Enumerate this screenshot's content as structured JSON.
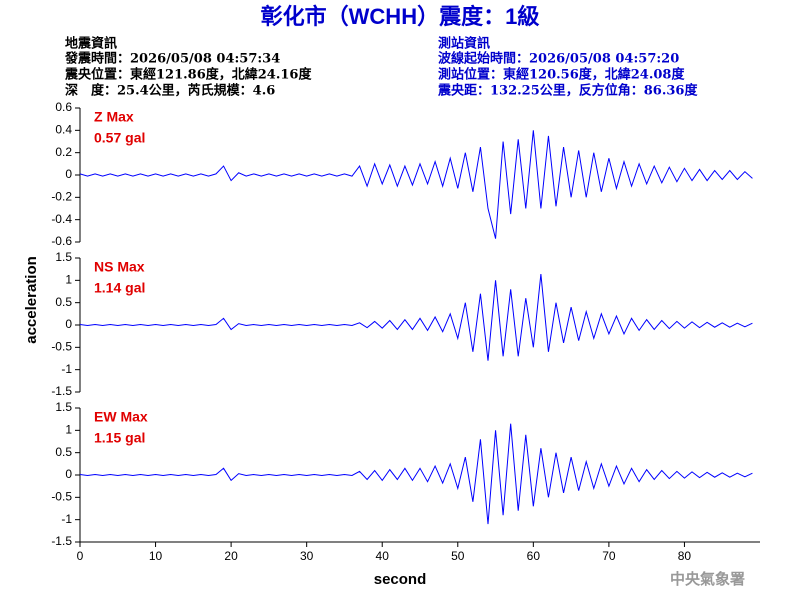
{
  "header": {
    "title": "彰化市（WCHH）震度：1級",
    "left": [
      "地震資訊",
      "發震時間：2026/05/08 04:57:34",
      "震央位置：東經121.86度，北緯24.16度",
      "深　度：25.4公里，芮氏規模：4.6"
    ],
    "right": [
      "測站資訊",
      "波線起始時間：2026/05/08 04:57:20",
      "測站位置：東經120.56度，北緯24.08度",
      "震央距：132.25公里，反方位角：86.36度"
    ],
    "footer": "中央氣象署"
  },
  "chart_data": [
    {
      "type": "line",
      "title": "Z Max",
      "annotation": "0.57 gal",
      "color": "#0000ff",
      "xlim": [
        0,
        90
      ],
      "ylim": [
        -0.6,
        0.6
      ],
      "yticks": [
        0.6,
        0.4,
        0.2,
        0,
        -0.2,
        -0.4,
        -0.6
      ],
      "x": [
        0,
        1,
        2,
        3,
        4,
        5,
        6,
        7,
        8,
        9,
        10,
        11,
        12,
        13,
        14,
        15,
        16,
        17,
        18,
        19,
        20,
        21,
        22,
        23,
        24,
        25,
        26,
        27,
        28,
        29,
        30,
        31,
        32,
        33,
        34,
        35,
        36,
        37,
        38,
        39,
        40,
        41,
        42,
        43,
        44,
        45,
        46,
        47,
        48,
        49,
        50,
        51,
        52,
        53,
        54,
        55,
        56,
        57,
        58,
        59,
        60,
        61,
        62,
        63,
        64,
        65,
        66,
        67,
        68,
        69,
        70,
        71,
        72,
        73,
        74,
        75,
        76,
        77,
        78,
        79,
        80,
        81,
        82,
        83,
        84,
        85,
        86,
        87,
        88,
        89
      ],
      "values": [
        0.01,
        -0.01,
        0.01,
        -0.01,
        0.01,
        -0.01,
        0.01,
        -0.01,
        0.01,
        -0.01,
        0.01,
        -0.01,
        0.01,
        -0.01,
        0.01,
        -0.01,
        0.01,
        -0.01,
        0.01,
        0.08,
        -0.05,
        0.02,
        -0.01,
        0.01,
        -0.01,
        0.01,
        -0.01,
        0.01,
        -0.01,
        0.01,
        -0.01,
        0.01,
        -0.01,
        0.01,
        -0.01,
        0.01,
        -0.01,
        0.08,
        -0.1,
        0.1,
        -0.08,
        0.09,
        -0.1,
        0.08,
        -0.09,
        0.1,
        -0.08,
        0.12,
        -0.1,
        0.15,
        -0.12,
        0.2,
        -0.15,
        0.25,
        -0.3,
        -0.57,
        0.3,
        -0.35,
        0.32,
        -0.3,
        0.4,
        -0.3,
        0.35,
        -0.28,
        0.25,
        -0.2,
        0.22,
        -0.2,
        0.2,
        -0.15,
        0.15,
        -0.12,
        0.12,
        -0.1,
        0.1,
        -0.08,
        0.08,
        -0.07,
        0.07,
        -0.06,
        0.06,
        -0.05,
        0.05,
        -0.05,
        0.04,
        -0.04,
        0.04,
        -0.04,
        0.03,
        -0.03
      ]
    },
    {
      "type": "line",
      "title": "NS Max",
      "annotation": "1.14 gal",
      "color": "#0000ff",
      "ylabel": "acceleration",
      "xlim": [
        0,
        90
      ],
      "ylim": [
        -1.5,
        1.5
      ],
      "yticks": [
        1.5,
        1,
        0.5,
        0,
        -0.5,
        -1,
        -1.5
      ],
      "x": [
        0,
        1,
        2,
        3,
        4,
        5,
        6,
        7,
        8,
        9,
        10,
        11,
        12,
        13,
        14,
        15,
        16,
        17,
        18,
        19,
        20,
        21,
        22,
        23,
        24,
        25,
        26,
        27,
        28,
        29,
        30,
        31,
        32,
        33,
        34,
        35,
        36,
        37,
        38,
        39,
        40,
        41,
        42,
        43,
        44,
        45,
        46,
        47,
        48,
        49,
        50,
        51,
        52,
        53,
        54,
        55,
        56,
        57,
        58,
        59,
        60,
        61,
        62,
        63,
        64,
        65,
        66,
        67,
        68,
        69,
        70,
        71,
        72,
        73,
        74,
        75,
        76,
        77,
        78,
        79,
        80,
        81,
        82,
        83,
        84,
        85,
        86,
        87,
        88,
        89
      ],
      "values": [
        0.01,
        -0.01,
        0.01,
        -0.01,
        0.01,
        -0.01,
        0.01,
        -0.01,
        0.01,
        -0.01,
        0.01,
        -0.01,
        0.01,
        -0.01,
        0.01,
        -0.01,
        0.01,
        -0.01,
        0.01,
        0.15,
        -0.1,
        0.03,
        -0.01,
        0.01,
        -0.01,
        0.01,
        -0.01,
        0.01,
        -0.01,
        0.01,
        -0.01,
        0.01,
        -0.01,
        0.01,
        -0.01,
        0.01,
        -0.01,
        0.05,
        -0.06,
        0.08,
        -0.07,
        0.1,
        -0.1,
        0.12,
        -0.1,
        0.15,
        -0.12,
        0.18,
        -0.15,
        0.25,
        -0.3,
        0.5,
        -0.6,
        0.7,
        -0.8,
        1.0,
        -0.7,
        0.8,
        -0.7,
        0.6,
        -0.5,
        1.14,
        -0.6,
        0.5,
        -0.4,
        0.4,
        -0.35,
        0.3,
        -0.3,
        0.25,
        -0.2,
        0.2,
        -0.2,
        0.15,
        -0.12,
        0.12,
        -0.1,
        0.1,
        -0.08,
        0.08,
        -0.07,
        0.07,
        -0.06,
        0.06,
        -0.05,
        0.05,
        -0.05,
        0.04,
        -0.04,
        0.04
      ]
    },
    {
      "type": "line",
      "title": "EW Max",
      "annotation": "1.15 gal",
      "color": "#0000ff",
      "xlabel": "second",
      "xlim": [
        0,
        90
      ],
      "xticks": [
        0,
        10,
        20,
        30,
        40,
        50,
        60,
        70,
        80
      ],
      "ylim": [
        -1.5,
        1.5
      ],
      "yticks": [
        1.5,
        1,
        0.5,
        0,
        -0.5,
        -1,
        -1.5
      ],
      "x": [
        0,
        1,
        2,
        3,
        4,
        5,
        6,
        7,
        8,
        9,
        10,
        11,
        12,
        13,
        14,
        15,
        16,
        17,
        18,
        19,
        20,
        21,
        22,
        23,
        24,
        25,
        26,
        27,
        28,
        29,
        30,
        31,
        32,
        33,
        34,
        35,
        36,
        37,
        38,
        39,
        40,
        41,
        42,
        43,
        44,
        45,
        46,
        47,
        48,
        49,
        50,
        51,
        52,
        53,
        54,
        55,
        56,
        57,
        58,
        59,
        60,
        61,
        62,
        63,
        64,
        65,
        66,
        67,
        68,
        69,
        70,
        71,
        72,
        73,
        74,
        75,
        76,
        77,
        78,
        79,
        80,
        81,
        82,
        83,
        84,
        85,
        86,
        87,
        88,
        89
      ],
      "values": [
        0.01,
        -0.01,
        0.01,
        -0.01,
        0.01,
        -0.01,
        0.01,
        -0.01,
        0.01,
        -0.01,
        0.01,
        -0.01,
        0.01,
        -0.01,
        0.01,
        -0.01,
        0.01,
        -0.01,
        0.01,
        0.15,
        -0.12,
        0.03,
        -0.01,
        0.01,
        -0.01,
        0.01,
        -0.01,
        0.01,
        -0.01,
        0.01,
        -0.01,
        0.01,
        -0.01,
        0.01,
        -0.01,
        0.01,
        -0.01,
        0.08,
        -0.1,
        0.1,
        -0.12,
        0.12,
        -0.1,
        0.15,
        -0.12,
        0.15,
        -0.15,
        0.2,
        -0.18,
        0.25,
        -0.3,
        0.4,
        -0.6,
        0.8,
        -1.1,
        1.0,
        -0.9,
        1.15,
        -0.8,
        0.9,
        -0.7,
        0.6,
        -0.5,
        0.5,
        -0.4,
        0.4,
        -0.35,
        0.3,
        -0.3,
        0.25,
        -0.25,
        0.2,
        -0.2,
        0.15,
        -0.15,
        0.12,
        -0.1,
        0.1,
        -0.08,
        0.08,
        -0.07,
        0.07,
        -0.06,
        0.06,
        -0.05,
        0.05,
        -0.05,
        0.04,
        -0.04,
        0.04
      ]
    }
  ]
}
